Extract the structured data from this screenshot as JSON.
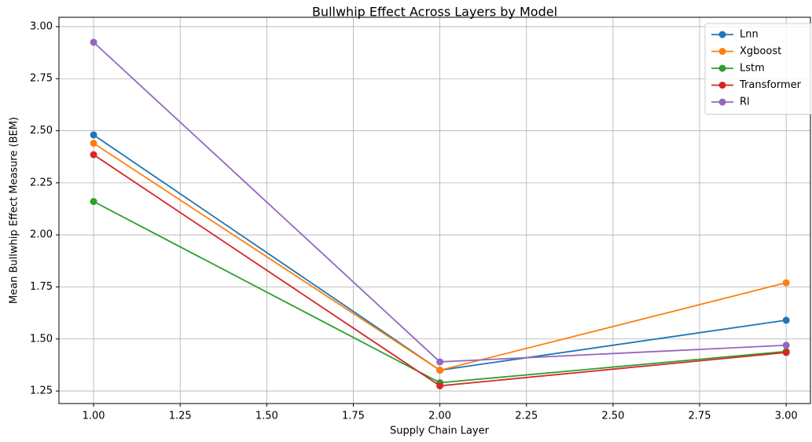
{
  "chart_data": {
    "type": "line",
    "title": "Bullwhip Effect Across Layers by Model",
    "xlabel": "Supply Chain Layer",
    "ylabel": "Mean Bullwhip Effect Measure (BEM)",
    "x": [
      1,
      2,
      3
    ],
    "series": [
      {
        "name": "Lnn",
        "color": "#1f77b4",
        "values": [
          2.48,
          1.35,
          1.59
        ]
      },
      {
        "name": "Xgboost",
        "color": "#ff7f0e",
        "values": [
          2.44,
          1.35,
          1.77
        ]
      },
      {
        "name": "Lstm",
        "color": "#2ca02c",
        "values": [
          2.16,
          1.29,
          1.44
        ]
      },
      {
        "name": "Transformer",
        "color": "#d62728",
        "values": [
          2.385,
          1.275,
          1.435
        ]
      },
      {
        "name": "Rl",
        "color": "#9467bd",
        "values": [
          2.925,
          1.39,
          1.47
        ]
      }
    ],
    "xlim": [
      0.9,
      3.07
    ],
    "ylim": [
      1.19,
      3.045
    ],
    "xticks": [
      {
        "value": 1,
        "label": "1.00"
      },
      {
        "value": 1.25,
        "label": "1.25"
      },
      {
        "value": 1.5,
        "label": "1.50"
      },
      {
        "value": 1.75,
        "label": "1.75"
      },
      {
        "value": 2,
        "label": "2.00"
      },
      {
        "value": 2.25,
        "label": "2.25"
      },
      {
        "value": 2.5,
        "label": "2.50"
      },
      {
        "value": 2.75,
        "label": "2.75"
      },
      {
        "value": 3,
        "label": "3.00"
      }
    ],
    "yticks": [
      {
        "value": 1.25,
        "label": "1.25"
      },
      {
        "value": 1.5,
        "label": "1.50"
      },
      {
        "value": 1.75,
        "label": "1.75"
      },
      {
        "value": 2,
        "label": "2.00"
      },
      {
        "value": 2.25,
        "label": "2.25"
      },
      {
        "value": 2.5,
        "label": "2.50"
      },
      {
        "value": 2.75,
        "label": "2.75"
      },
      {
        "value": 3,
        "label": "3.00"
      }
    ],
    "grid": true,
    "legend": "upper-right"
  }
}
